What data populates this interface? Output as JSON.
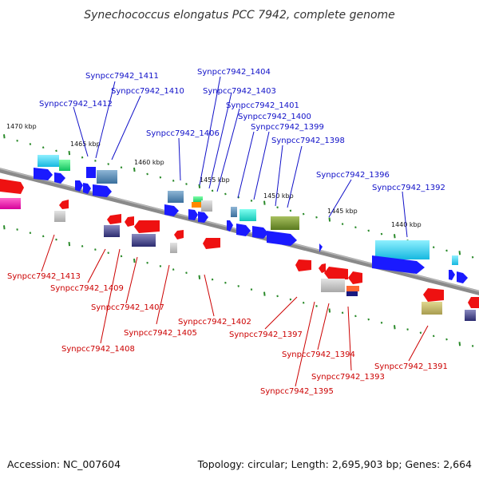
{
  "title": "Synechococcus elongatus PCC 7942, complete genome",
  "footer": {
    "accession": "Accession: NC_007604",
    "topology": "Topology: circular; Length: 2,695,903 bp; Genes: 2,664"
  },
  "colors": {
    "backbone": "#8a8a8a",
    "forward_arrow": "#1a1aff",
    "reverse_arrow": "#ee1111",
    "tick": "#2a8a2a",
    "top_label": "#1010c8",
    "bottom_label": "#cc0000"
  },
  "scale_labels": [
    "1470 kbp",
    "1465 kbp",
    "1460 kbp",
    "1455 kbp",
    "1450 kbp",
    "1445 kbp",
    "1440 kbp"
  ],
  "top_genes": [
    "Synpcc7942_1412",
    "Synpcc7942_1411",
    "Synpcc7942_1410",
    "Synpcc7942_1406",
    "Synpcc7942_1404",
    "Synpcc7942_1403",
    "Synpcc7942_1401",
    "Synpcc7942_1400",
    "Synpcc7942_1399",
    "Synpcc7942_1398",
    "Synpcc7942_1396",
    "Synpcc7942_1392"
  ],
  "bottom_genes": [
    "Synpcc7942_1413",
    "Synpcc7942_1409",
    "Synpcc7942_1407",
    "Synpcc7942_1408",
    "Synpcc7942_1405",
    "Synpcc7942_1402",
    "Synpcc7942_1397",
    "Synpcc7942_1394",
    "Synpcc7942_1395",
    "Synpcc7942_1393",
    "Synpcc7942_1391"
  ]
}
